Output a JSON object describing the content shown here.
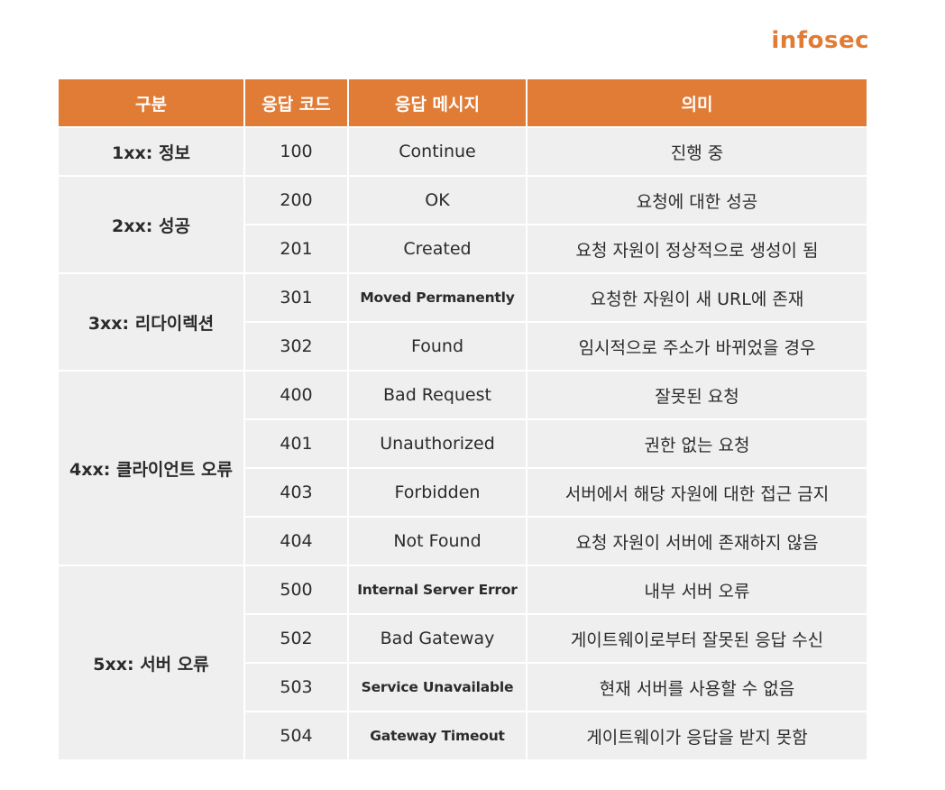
{
  "brand": "infosec",
  "headers": [
    "구분",
    "응답 코드",
    "응답 메시지",
    "의미"
  ],
  "groups": [
    {
      "category": "1xx: 정보",
      "rows": [
        {
          "code": "100",
          "message": "Continue",
          "meaning": "진행 중"
        }
      ]
    },
    {
      "category": "2xx: 성공",
      "rows": [
        {
          "code": "200",
          "message": "OK",
          "meaning": "요청에 대한 성공"
        },
        {
          "code": "201",
          "message": "Created",
          "meaning": "요청 자원이 정상적으로 생성이 됨"
        }
      ]
    },
    {
      "category": "3xx: 리다이렉션",
      "rows": [
        {
          "code": "301",
          "message": "Moved Permanently",
          "meaning": "요청한 자원이 새 URL에 존재"
        },
        {
          "code": "302",
          "message": "Found",
          "meaning": "임시적으로 주소가 바뀌었을 경우"
        }
      ]
    },
    {
      "category": "4xx: 클라이언트 오류",
      "rows": [
        {
          "code": "400",
          "message": "Bad Request",
          "meaning": "잘못된 요청"
        },
        {
          "code": "401",
          "message": "Unauthorized",
          "meaning": "권한 없는 요청"
        },
        {
          "code": "403",
          "message": "Forbidden",
          "meaning": "서버에서 해당 자원에 대한 접근 금지"
        },
        {
          "code": "404",
          "message": "Not Found",
          "meaning": "요청 자원이 서버에 존재하지 않음"
        }
      ]
    },
    {
      "category": "5xx: 서버 오류",
      "rows": [
        {
          "code": "500",
          "message": "Internal Server Error",
          "meaning": "내부 서버 오류"
        },
        {
          "code": "502",
          "message": "Bad Gateway",
          "meaning": "게이트웨이로부터 잘못된 응답 수신"
        },
        {
          "code": "503",
          "message": "Service Unavailable",
          "meaning": "현재 서버를 사용할 수 없음"
        },
        {
          "code": "504",
          "message": "Gateway Timeout",
          "meaning": "게이트웨이가 응답을 받지 못함"
        }
      ]
    }
  ],
  "colors": {
    "accent": "#e07c35",
    "cell_bg": "#efefef",
    "text": "#2b2b2b"
  }
}
